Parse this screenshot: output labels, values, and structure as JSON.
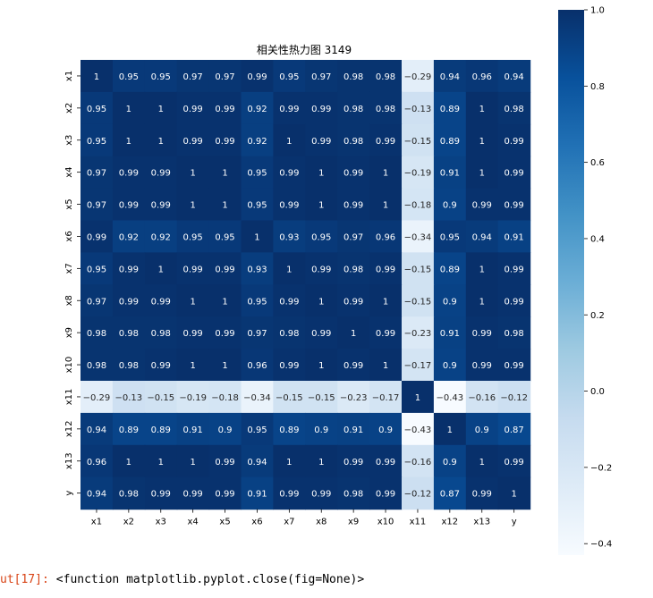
{
  "chart_data": {
    "type": "heatmap",
    "title": "相关性热力图 3149",
    "labels": [
      "x1",
      "x2",
      "x3",
      "x4",
      "x5",
      "x6",
      "x7",
      "x8",
      "x9",
      "x10",
      "x11",
      "x12",
      "x13",
      "y"
    ],
    "values": [
      [
        1,
        0.95,
        0.95,
        0.97,
        0.97,
        0.99,
        0.95,
        0.97,
        0.98,
        0.98,
        -0.29,
        0.94,
        0.96,
        0.94
      ],
      [
        0.95,
        1,
        1,
        0.99,
        0.99,
        0.92,
        0.99,
        0.99,
        0.98,
        0.98,
        -0.13,
        0.89,
        1,
        0.98
      ],
      [
        0.95,
        1,
        1,
        0.99,
        0.99,
        0.92,
        1,
        0.99,
        0.98,
        0.99,
        -0.15,
        0.89,
        1,
        0.99
      ],
      [
        0.97,
        0.99,
        0.99,
        1,
        1,
        0.95,
        0.99,
        1,
        0.99,
        1,
        -0.19,
        0.91,
        1,
        0.99
      ],
      [
        0.97,
        0.99,
        0.99,
        1,
        1,
        0.95,
        0.99,
        1,
        0.99,
        1,
        -0.18,
        0.9,
        0.99,
        0.99
      ],
      [
        0.99,
        0.92,
        0.92,
        0.95,
        0.95,
        1,
        0.93,
        0.95,
        0.97,
        0.96,
        -0.34,
        0.95,
        0.94,
        0.91
      ],
      [
        0.95,
        0.99,
        1,
        0.99,
        0.99,
        0.93,
        1,
        0.99,
        0.98,
        0.99,
        -0.15,
        0.89,
        1,
        0.99
      ],
      [
        0.97,
        0.99,
        0.99,
        1,
        1,
        0.95,
        0.99,
        1,
        0.99,
        1,
        -0.15,
        0.9,
        1,
        0.99
      ],
      [
        0.98,
        0.98,
        0.98,
        0.99,
        0.99,
        0.97,
        0.98,
        0.99,
        1,
        0.99,
        -0.23,
        0.91,
        0.99,
        0.98
      ],
      [
        0.98,
        0.98,
        0.99,
        1,
        1,
        0.96,
        0.99,
        1,
        0.99,
        1,
        -0.17,
        0.9,
        0.99,
        0.99
      ],
      [
        -0.29,
        -0.13,
        -0.15,
        -0.19,
        -0.18,
        -0.34,
        -0.15,
        -0.15,
        -0.23,
        -0.17,
        1,
        -0.43,
        -0.16,
        -0.12
      ],
      [
        0.94,
        0.89,
        0.89,
        0.91,
        0.9,
        0.95,
        0.89,
        0.9,
        0.91,
        0.9,
        -0.43,
        1,
        0.9,
        0.87
      ],
      [
        0.96,
        1,
        1,
        1,
        0.99,
        0.94,
        1,
        1,
        0.99,
        0.99,
        -0.16,
        0.9,
        1,
        0.99
      ],
      [
        0.94,
        0.98,
        0.99,
        0.99,
        0.99,
        0.91,
        0.99,
        0.99,
        0.98,
        0.99,
        -0.12,
        0.87,
        0.99,
        1
      ]
    ],
    "colorbar": {
      "range": [
        -0.43,
        1.0
      ],
      "ticks": [
        1.0,
        0.8,
        0.6,
        0.4,
        0.2,
        0.0,
        -0.2,
        -0.4
      ],
      "tick_labels": [
        "1.0",
        "0.8",
        "0.6",
        "0.4",
        "0.2",
        "0.0",
        "−0.2",
        "−0.4"
      ]
    },
    "colormap": "Blues",
    "colormap_stops": [
      "#f7fbff",
      "#deebf7",
      "#c6dbef",
      "#9ecae1",
      "#6baed6",
      "#4292c6",
      "#2171b5",
      "#08519c",
      "#08306b"
    ],
    "grid": false,
    "legend": "none"
  },
  "output": {
    "prompt": "ut[17]:",
    "text": "<function matplotlib.pyplot.close(fig=None)>"
  }
}
